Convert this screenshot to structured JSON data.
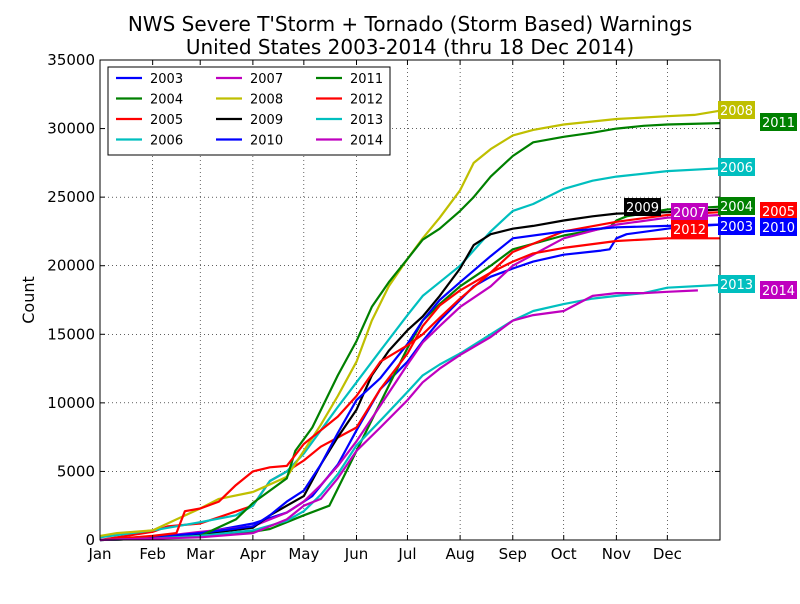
{
  "chart_data": {
    "type": "line",
    "title": [
      "NWS Severe T'Storm + Tornado (Storm Based) Warnings",
      "United States 2003-2014 (thru 18 Dec 2014)"
    ],
    "xlabel": "",
    "ylabel": "Count",
    "xlim": [
      0,
      365
    ],
    "ylim": [
      0,
      35000
    ],
    "x_ticks": [
      {
        "label": "Jan",
        "day": 0
      },
      {
        "label": "Feb",
        "day": 31
      },
      {
        "label": "Mar",
        "day": 59
      },
      {
        "label": "Apr",
        "day": 90
      },
      {
        "label": "May",
        "day": 120
      },
      {
        "label": "Jun",
        "day": 151
      },
      {
        "label": "Jul",
        "day": 181
      },
      {
        "label": "Aug",
        "day": 212
      },
      {
        "label": "Sep",
        "day": 243
      },
      {
        "label": "Oct",
        "day": 273
      },
      {
        "label": "Nov",
        "day": 304
      },
      {
        "label": "Dec",
        "day": 334
      }
    ],
    "y_ticks": [
      0,
      5000,
      10000,
      15000,
      20000,
      25000,
      30000,
      35000
    ],
    "grid": true,
    "legend_position": "top-left",
    "series": [
      {
        "name": "2003",
        "color": "#0000ff",
        "end_label": "2003",
        "x": [
          0,
          31,
          59,
          90,
          110,
          125,
          140,
          151,
          165,
          181,
          190,
          200,
          212,
          220,
          230,
          243,
          255,
          273,
          295,
          300,
          304,
          310,
          334,
          340,
          365
        ],
        "y": [
          0,
          200,
          500,
          1200,
          2000,
          3200,
          5500,
          8000,
          11000,
          13000,
          14500,
          16000,
          17500,
          18500,
          19200,
          19800,
          20300,
          20800,
          21100,
          21200,
          22000,
          22300,
          22700,
          22800,
          23000
        ]
      },
      {
        "name": "2004",
        "color": "#008000",
        "end_label": "2004",
        "x": [
          0,
          31,
          59,
          90,
          100,
          110,
          120,
          135,
          151,
          165,
          181,
          190,
          200,
          212,
          230,
          243,
          273,
          300,
          304,
          310,
          334,
          365
        ],
        "y": [
          0,
          100,
          300,
          600,
          800,
          1300,
          1800,
          2500,
          6500,
          10000,
          14000,
          16000,
          17200,
          18500,
          20000,
          21200,
          22200,
          22800,
          23300,
          23600,
          24100,
          24300
        ]
      },
      {
        "name": "2005",
        "color": "#ff0000",
        "end_label": "2005",
        "x": [
          0,
          31,
          40,
          59,
          90,
          100,
          110,
          120,
          130,
          151,
          165,
          181,
          190,
          200,
          212,
          230,
          243,
          273,
          304,
          334,
          365
        ],
        "y": [
          0,
          600,
          1000,
          1200,
          2500,
          4300,
          5000,
          5800,
          6800,
          8200,
          11000,
          13600,
          15600,
          17100,
          18200,
          19500,
          21000,
          22500,
          23200,
          23700,
          23900
        ]
      },
      {
        "name": "2006",
        "color": "#00bfbf",
        "end_label": "2006",
        "x": [
          0,
          31,
          59,
          80,
          90,
          100,
          110,
          120,
          130,
          140,
          151,
          165,
          181,
          190,
          200,
          212,
          230,
          243,
          255,
          273,
          290,
          304,
          334,
          365
        ],
        "y": [
          200,
          700,
          1300,
          1800,
          2500,
          4300,
          5000,
          6300,
          8000,
          9700,
          11500,
          13800,
          16400,
          17800,
          18800,
          20000,
          22500,
          24000,
          24500,
          25600,
          26200,
          26500,
          26900,
          27100
        ]
      },
      {
        "name": "2007",
        "color": "#bf00bf",
        "end_label": "2007",
        "x": [
          0,
          31,
          59,
          90,
          110,
          120,
          130,
          140,
          151,
          165,
          181,
          190,
          200,
          212,
          230,
          243,
          273,
          304,
          334,
          365
        ],
        "y": [
          0,
          200,
          600,
          1000,
          2000,
          2800,
          4000,
          5400,
          7200,
          9800,
          12800,
          14400,
          15600,
          17000,
          18500,
          20000,
          22000,
          23000,
          23500,
          23700
        ]
      },
      {
        "name": "2008",
        "color": "#bfbf00",
        "end_label": "2008",
        "x": [
          0,
          10,
          31,
          45,
          59,
          70,
          90,
          110,
          120,
          130,
          140,
          151,
          160,
          170,
          181,
          190,
          200,
          212,
          220,
          230,
          243,
          255,
          273,
          304,
          334,
          350,
          365
        ],
        "y": [
          300,
          500,
          700,
          1500,
          2300,
          3000,
          3500,
          4600,
          6500,
          8400,
          10500,
          13000,
          16000,
          18500,
          20500,
          22000,
          23500,
          25500,
          27500,
          28500,
          29500,
          29900,
          30300,
          30700,
          30900,
          31000,
          31300
        ]
      },
      {
        "name": "2009",
        "color": "#000000",
        "end_label": "2009",
        "x": [
          0,
          31,
          59,
          90,
          100,
          110,
          120,
          130,
          140,
          151,
          160,
          170,
          181,
          190,
          200,
          212,
          220,
          230,
          243,
          255,
          273,
          290,
          304,
          334,
          350,
          365
        ],
        "y": [
          0,
          100,
          400,
          900,
          1800,
          2500,
          3200,
          5500,
          7500,
          9500,
          12000,
          13800,
          15300,
          16300,
          17800,
          19800,
          21500,
          22300,
          22700,
          22900,
          23300,
          23600,
          23800,
          23900,
          24000,
          24100
        ]
      },
      {
        "name": "2010",
        "color": "#0000ff",
        "end_label": "2010",
        "x": [
          0,
          31,
          59,
          90,
          100,
          110,
          120,
          130,
          140,
          151,
          165,
          181,
          190,
          200,
          212,
          230,
          243,
          273,
          304,
          334,
          365
        ],
        "y": [
          0,
          200,
          500,
          1000,
          1800,
          2800,
          3600,
          5500,
          7800,
          10200,
          11800,
          14300,
          16000,
          17500,
          18800,
          20700,
          22000,
          22500,
          22800,
          22900,
          23000
        ]
      },
      {
        "name": "2011",
        "color": "#008000",
        "end_label": "2011",
        "x": [
          0,
          31,
          59,
          80,
          90,
          100,
          110,
          115,
          125,
          140,
          151,
          160,
          170,
          181,
          190,
          200,
          212,
          220,
          230,
          243,
          255,
          273,
          290,
          304,
          320,
          334,
          365
        ],
        "y": [
          0,
          100,
          300,
          1500,
          2700,
          3600,
          4500,
          6500,
          8200,
          12000,
          14500,
          17000,
          18800,
          20500,
          21900,
          22700,
          24000,
          25000,
          26500,
          28000,
          29000,
          29400,
          29700,
          30000,
          30200,
          30300,
          30400
        ]
      },
      {
        "name": "2012",
        "color": "#ff0000",
        "end_label": "2012",
        "x": [
          0,
          20,
          31,
          45,
          50,
          59,
          70,
          80,
          90,
          100,
          110,
          120,
          130,
          140,
          151,
          165,
          181,
          190,
          200,
          212,
          230,
          243,
          255,
          273,
          304,
          334,
          365
        ],
        "y": [
          0,
          200,
          300,
          500,
          2100,
          2300,
          2800,
          4000,
          5000,
          5300,
          5400,
          7000,
          8000,
          9000,
          10500,
          13000,
          14200,
          15000,
          16200,
          17600,
          19500,
          20300,
          20900,
          21300,
          21800,
          22000,
          22000
        ]
      },
      {
        "name": "2013",
        "color": "#00bfbf",
        "end_label": "2013",
        "x": [
          0,
          31,
          59,
          90,
          110,
          120,
          130,
          140,
          151,
          165,
          181,
          190,
          200,
          212,
          230,
          243,
          255,
          273,
          290,
          304,
          320,
          334,
          365
        ],
        "y": [
          0,
          100,
          300,
          700,
          1400,
          2100,
          3300,
          4800,
          6900,
          8700,
          10800,
          12000,
          12800,
          13600,
          15000,
          16000,
          16700,
          17200,
          17600,
          17800,
          18000,
          18400,
          18600
        ]
      },
      {
        "name": "2014",
        "color": "#bf00bf",
        "end_label": "2014",
        "x": [
          0,
          31,
          59,
          90,
          110,
          120,
          130,
          140,
          151,
          165,
          181,
          190,
          200,
          212,
          230,
          243,
          255,
          273,
          290,
          304,
          320,
          334,
          352
        ],
        "y": [
          0,
          100,
          200,
          500,
          1500,
          2500,
          3000,
          4500,
          6500,
          8200,
          10200,
          11500,
          12500,
          13500,
          14800,
          16000,
          16400,
          16700,
          17800,
          18000,
          18000,
          18100,
          18200
        ]
      }
    ]
  }
}
